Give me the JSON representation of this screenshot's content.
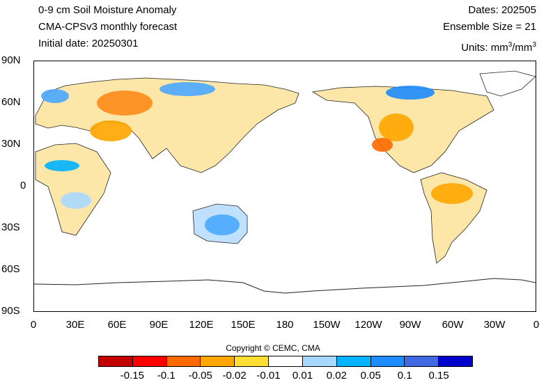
{
  "header": {
    "title": "0-9 cm Soil Moisture Anomaly",
    "model": "CMA-CPSv3 monthly forecast",
    "initial": "Initial date: 20250301",
    "dates": "Dates: 202505",
    "ensemble": "Ensemble Size = 21",
    "units_prefix": "Units: mm",
    "units_mid": "/mm",
    "units_exp": "3"
  },
  "axes": {
    "y_labels": [
      "90N",
      "60N",
      "30N",
      "0",
      "30S",
      "60S",
      "90S"
    ],
    "x_labels": [
      "0",
      "30E",
      "60E",
      "90E",
      "120E",
      "150E",
      "180",
      "150W",
      "120W",
      "90W",
      "60W",
      "30W",
      "0"
    ]
  },
  "copyright": "Copyright © CEMC, CMA",
  "legend": {
    "colors": [
      "#c40000",
      "#ff0000",
      "#ff6a00",
      "#ffa600",
      "#ffdd33",
      "#ffffff",
      "#a8d8ff",
      "#00b4ff",
      "#1e8cff",
      "#4169e1",
      "#0000cc"
    ],
    "labels": [
      "-0.15",
      "-0.1",
      "-0.05",
      "-0.02",
      "-0.01",
      "0.01",
      "0.02",
      "0.05",
      "0.1",
      "0.15"
    ]
  }
}
